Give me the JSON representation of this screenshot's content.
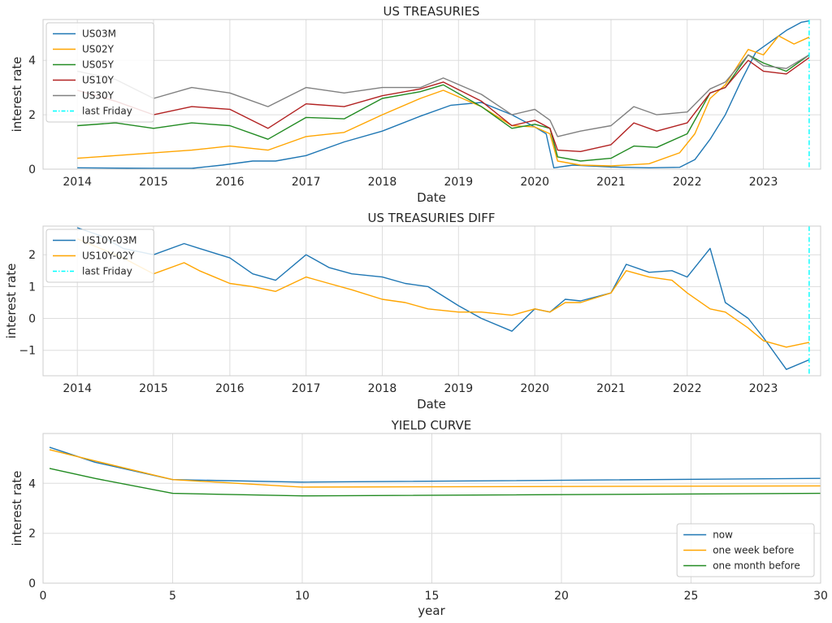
{
  "chart_data": [
    {
      "type": "line",
      "title": "US TREASURIES",
      "xlabel": "Date",
      "ylabel": "interest rate",
      "xlim": [
        2013.55,
        2023.75
      ],
      "ylim": [
        0,
        5.5
      ],
      "xticks": [
        2014,
        2015,
        2016,
        2017,
        2018,
        2019,
        2020,
        2021,
        2022,
        2023
      ],
      "xtick_labels": [
        "2014",
        "2015",
        "2016",
        "2017",
        "2018",
        "2019",
        "2020",
        "2021",
        "2022",
        "2023"
      ],
      "yticks": [
        0,
        2,
        4
      ],
      "ytick_labels": [
        "0",
        "2",
        "4"
      ],
      "grid": true,
      "legend": "upper-left",
      "vline": {
        "name": "last Friday",
        "x": 2023.6,
        "color": "#00ffff"
      },
      "series": [
        {
          "name": "US03M",
          "color": "#1f77b4",
          "x": [
            2014.0,
            2014.5,
            2015.0,
            2015.5,
            2015.9,
            2016.3,
            2016.6,
            2017.0,
            2017.5,
            2018.0,
            2018.5,
            2018.9,
            2019.3,
            2019.7,
            2020.0,
            2020.15,
            2020.25,
            2020.5,
            2021.0,
            2021.5,
            2021.9,
            2022.1,
            2022.3,
            2022.5,
            2022.7,
            2022.9,
            2023.1,
            2023.3,
            2023.5,
            2023.6
          ],
          "values": [
            0.05,
            0.04,
            0.03,
            0.03,
            0.15,
            0.3,
            0.3,
            0.5,
            1.0,
            1.4,
            1.95,
            2.35,
            2.45,
            2.0,
            1.55,
            1.3,
            0.05,
            0.15,
            0.08,
            0.05,
            0.07,
            0.35,
            1.1,
            2.0,
            3.2,
            4.3,
            4.7,
            5.1,
            5.4,
            5.45
          ]
        },
        {
          "name": "US02Y",
          "color": "#ffa500",
          "x": [
            2014.0,
            2014.5,
            2015.0,
            2015.5,
            2016.0,
            2016.5,
            2017.0,
            2017.5,
            2018.0,
            2018.5,
            2018.8,
            2019.3,
            2019.7,
            2020.0,
            2020.2,
            2020.3,
            2020.6,
            2021.0,
            2021.5,
            2021.9,
            2022.1,
            2022.3,
            2022.5,
            2022.8,
            2023.0,
            2023.2,
            2023.4,
            2023.6
          ],
          "values": [
            0.4,
            0.5,
            0.6,
            0.7,
            0.85,
            0.7,
            1.2,
            1.35,
            2.0,
            2.6,
            2.9,
            2.3,
            1.6,
            1.55,
            1.3,
            0.3,
            0.15,
            0.12,
            0.2,
            0.6,
            1.3,
            2.6,
            3.1,
            4.4,
            4.2,
            4.9,
            4.6,
            4.85
          ]
        },
        {
          "name": "US05Y",
          "color": "#228b22",
          "x": [
            2014.0,
            2014.5,
            2015.0,
            2015.5,
            2016.0,
            2016.5,
            2017.0,
            2017.5,
            2018.0,
            2018.5,
            2018.8,
            2019.3,
            2019.7,
            2020.0,
            2020.2,
            2020.3,
            2020.6,
            2021.0,
            2021.3,
            2021.6,
            2022.0,
            2022.3,
            2022.5,
            2022.8,
            2023.0,
            2023.3,
            2023.6
          ],
          "values": [
            1.6,
            1.7,
            1.5,
            1.7,
            1.6,
            1.1,
            1.9,
            1.85,
            2.6,
            2.85,
            3.1,
            2.3,
            1.5,
            1.65,
            1.5,
            0.45,
            0.3,
            0.4,
            0.85,
            0.8,
            1.3,
            2.8,
            3.0,
            4.2,
            3.9,
            3.6,
            4.2
          ]
        },
        {
          "name": "US10Y",
          "color": "#b22222",
          "x": [
            2014.0,
            2014.5,
            2015.0,
            2015.5,
            2016.0,
            2016.5,
            2017.0,
            2017.5,
            2018.0,
            2018.5,
            2018.8,
            2019.3,
            2019.7,
            2020.0,
            2020.2,
            2020.3,
            2020.6,
            2021.0,
            2021.3,
            2021.6,
            2022.0,
            2022.3,
            2022.5,
            2022.8,
            2023.0,
            2023.3,
            2023.6
          ],
          "values": [
            2.9,
            2.5,
            2.0,
            2.3,
            2.2,
            1.5,
            2.4,
            2.3,
            2.7,
            2.95,
            3.2,
            2.5,
            1.6,
            1.8,
            1.5,
            0.7,
            0.65,
            0.9,
            1.7,
            1.4,
            1.7,
            2.8,
            3.0,
            4.0,
            3.6,
            3.5,
            4.1
          ]
        },
        {
          "name": "US30Y",
          "color": "#808080",
          "x": [
            2014.0,
            2014.5,
            2015.0,
            2015.5,
            2016.0,
            2016.5,
            2017.0,
            2017.5,
            2018.0,
            2018.5,
            2018.8,
            2019.3,
            2019.7,
            2020.0,
            2020.2,
            2020.3,
            2020.6,
            2021.0,
            2021.3,
            2021.6,
            2022.0,
            2022.3,
            2022.5,
            2022.8,
            2023.0,
            2023.3,
            2023.6
          ],
          "values": [
            3.6,
            3.3,
            2.6,
            3.0,
            2.8,
            2.3,
            3.0,
            2.8,
            3.0,
            3.0,
            3.35,
            2.75,
            2.0,
            2.2,
            1.8,
            1.2,
            1.4,
            1.6,
            2.3,
            2.0,
            2.1,
            2.95,
            3.2,
            4.2,
            3.8,
            3.7,
            4.2
          ]
        }
      ]
    },
    {
      "type": "line",
      "title": "US TREASURIES DIFF",
      "xlabel": "Date",
      "ylabel": "interest rate",
      "xlim": [
        2013.55,
        2023.75
      ],
      "ylim": [
        -1.8,
        2.9
      ],
      "xticks": [
        2014,
        2015,
        2016,
        2017,
        2018,
        2019,
        2020,
        2021,
        2022,
        2023
      ],
      "xtick_labels": [
        "2014",
        "2015",
        "2016",
        "2017",
        "2018",
        "2019",
        "2020",
        "2021",
        "2022",
        "2023"
      ],
      "yticks": [
        -1,
        0,
        1,
        2
      ],
      "ytick_labels": [
        "−1",
        "0",
        "1",
        "2"
      ],
      "grid": true,
      "legend": "upper-left",
      "vline": {
        "name": "last Friday",
        "x": 2023.6,
        "color": "#00ffff"
      },
      "series": [
        {
          "name": "US10Y-03M",
          "color": "#1f77b4",
          "x": [
            2014.0,
            2014.3,
            2014.6,
            2015.0,
            2015.4,
            2015.6,
            2016.0,
            2016.3,
            2016.6,
            2017.0,
            2017.3,
            2017.6,
            2018.0,
            2018.3,
            2018.6,
            2019.0,
            2019.3,
            2019.7,
            2020.0,
            2020.2,
            2020.4,
            2020.6,
            2021.0,
            2021.2,
            2021.5,
            2021.8,
            2022.0,
            2022.3,
            2022.5,
            2022.8,
            2023.0,
            2023.3,
            2023.6
          ],
          "values": [
            2.85,
            2.6,
            2.2,
            2.0,
            2.35,
            2.2,
            1.9,
            1.4,
            1.2,
            2.0,
            1.6,
            1.4,
            1.3,
            1.1,
            1.0,
            0.4,
            0.0,
            -0.4,
            0.3,
            0.2,
            0.6,
            0.55,
            0.8,
            1.7,
            1.45,
            1.5,
            1.3,
            2.2,
            0.5,
            0.0,
            -0.6,
            -1.6,
            -1.3
          ]
        },
        {
          "name": "US10Y-02Y",
          "color": "#ffa500",
          "x": [
            2014.0,
            2014.3,
            2014.6,
            2015.0,
            2015.4,
            2015.6,
            2016.0,
            2016.3,
            2016.6,
            2017.0,
            2017.3,
            2017.6,
            2018.0,
            2018.3,
            2018.6,
            2019.0,
            2019.3,
            2019.7,
            2020.0,
            2020.2,
            2020.4,
            2020.6,
            2021.0,
            2021.2,
            2021.5,
            2021.8,
            2022.0,
            2022.3,
            2022.5,
            2022.8,
            2023.0,
            2023.3,
            2023.6
          ],
          "values": [
            2.5,
            2.2,
            1.9,
            1.4,
            1.75,
            1.5,
            1.1,
            1.0,
            0.85,
            1.3,
            1.1,
            0.9,
            0.6,
            0.5,
            0.3,
            0.2,
            0.2,
            0.1,
            0.3,
            0.2,
            0.5,
            0.5,
            0.8,
            1.5,
            1.3,
            1.2,
            0.8,
            0.3,
            0.2,
            -0.3,
            -0.7,
            -0.9,
            -0.75
          ]
        }
      ]
    },
    {
      "type": "line",
      "title": "YIELD CURVE",
      "xlabel": "year",
      "ylabel": "interest rate",
      "xlim": [
        0,
        30
      ],
      "ylim": [
        0,
        6.0
      ],
      "xticks": [
        0,
        5,
        10,
        15,
        20,
        25,
        30
      ],
      "xtick_labels": [
        "0",
        "5",
        "10",
        "15",
        "20",
        "25",
        "30"
      ],
      "yticks": [
        0,
        2,
        4
      ],
      "ytick_labels": [
        "0",
        "2",
        "4"
      ],
      "grid": true,
      "legend": "lower-right",
      "series": [
        {
          "name": "now",
          "color": "#1f77b4",
          "x": [
            0.25,
            2,
            5,
            10,
            30
          ],
          "values": [
            5.45,
            4.85,
            4.15,
            4.05,
            4.2
          ]
        },
        {
          "name": "one week before",
          "color": "#ffa500",
          "x": [
            0.25,
            2,
            5,
            10,
            30
          ],
          "values": [
            5.35,
            4.9,
            4.15,
            3.85,
            3.9
          ]
        },
        {
          "name": "one month before",
          "color": "#228b22",
          "x": [
            0.25,
            2,
            5,
            10,
            30
          ],
          "values": [
            4.6,
            4.2,
            3.6,
            3.5,
            3.6
          ]
        }
      ]
    }
  ]
}
